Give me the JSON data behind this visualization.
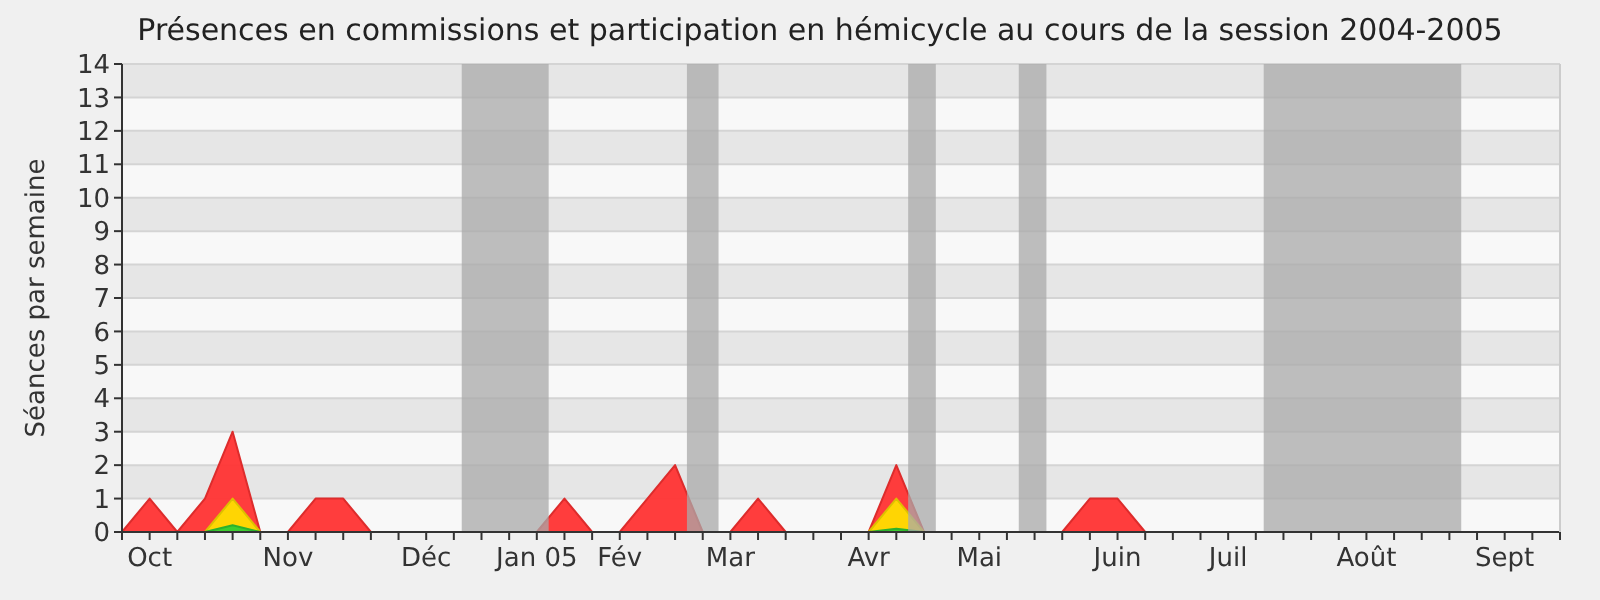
{
  "chart_data": {
    "type": "area",
    "title": "Présences en commissions et participation en hémicycle au cours de la session 2004-2005",
    "ylabel": "Séances par semaine",
    "x": [
      "2004-09-28",
      "2004-10-05",
      "2004-10-12",
      "2004-10-19",
      "2004-10-26",
      "2004-11-02",
      "2004-11-09",
      "2004-11-16",
      "2004-11-23",
      "2004-11-30",
      "2004-12-07",
      "2004-12-14",
      "2004-12-21",
      "2004-12-28",
      "2005-01-04",
      "2005-01-11",
      "2005-01-18",
      "2005-01-25",
      "2005-02-01",
      "2005-02-08",
      "2005-02-15",
      "2005-02-22",
      "2005-03-01",
      "2005-03-08",
      "2005-03-15",
      "2005-03-22",
      "2005-03-29",
      "2005-04-05",
      "2005-04-12",
      "2005-04-19",
      "2005-04-26",
      "2005-05-03",
      "2005-05-10",
      "2005-05-17",
      "2005-05-24",
      "2005-05-31",
      "2005-06-07",
      "2005-06-14",
      "2005-06-21",
      "2005-06-28",
      "2005-07-05",
      "2005-07-12",
      "2005-07-19",
      "2005-07-26",
      "2005-08-02",
      "2005-08-09",
      "2005-08-16",
      "2005-08-23",
      "2005-08-30",
      "2005-09-06",
      "2005-09-13",
      "2005-09-20",
      "2005-09-27"
    ],
    "series": [
      {
        "color": "#ff3333",
        "values": [
          0,
          1,
          0,
          1,
          3,
          0,
          0,
          1,
          1,
          0,
          0,
          0,
          0,
          0,
          0,
          0,
          1,
          0,
          0,
          1,
          2,
          0,
          0,
          1,
          0,
          0,
          0,
          0,
          2,
          0,
          0,
          0,
          0,
          0,
          0,
          1,
          1,
          0,
          0,
          0,
          0,
          0,
          0,
          0,
          0,
          0,
          0,
          0,
          0,
          0,
          0,
          0,
          0
        ]
      },
      {
        "color": "#ffdd00",
        "values": [
          0,
          0,
          0,
          0,
          1,
          0,
          0,
          0,
          0,
          0,
          0,
          0,
          0,
          0,
          0,
          0,
          0,
          0,
          0,
          0,
          0,
          0,
          0,
          0,
          0,
          0,
          0,
          0,
          1,
          0,
          0,
          0,
          0,
          0,
          0,
          0,
          0,
          0,
          0,
          0,
          0,
          0,
          0,
          0,
          0,
          0,
          0,
          0,
          0,
          0,
          0,
          0,
          0
        ]
      },
      {
        "color": "#33cc33",
        "values": [
          0,
          0,
          0,
          0,
          0.2,
          0,
          0,
          0,
          0,
          0,
          0,
          0,
          0,
          0,
          0,
          0,
          0,
          0,
          0,
          0,
          0,
          0,
          0,
          0,
          0,
          0,
          0,
          0,
          0.1,
          0,
          0,
          0,
          0,
          0,
          0,
          0,
          0,
          0,
          0,
          0,
          0,
          0,
          0,
          0,
          0,
          0,
          0,
          0,
          0,
          0,
          0,
          0,
          0
        ]
      }
    ],
    "xlim": [
      "2004-09-28",
      "2005-09-27"
    ],
    "xticks": [
      {
        "value": "2004-09-28",
        "label": null
      },
      {
        "value": "2004-10-05",
        "label": "Oct"
      },
      {
        "value": "2004-10-12",
        "label": null
      },
      {
        "value": "2004-10-19",
        "label": null
      },
      {
        "value": "2004-10-26",
        "label": null
      },
      {
        "value": "2004-11-02",
        "label": null
      },
      {
        "value": "2004-11-09",
        "label": "Nov"
      },
      {
        "value": "2004-11-16",
        "label": null
      },
      {
        "value": "2004-11-23",
        "label": null
      },
      {
        "value": "2004-11-30",
        "label": null
      },
      {
        "value": "2004-12-07",
        "label": null
      },
      {
        "value": "2004-12-14",
        "label": "Déc"
      },
      {
        "value": "2004-12-21",
        "label": null
      },
      {
        "value": "2004-12-28",
        "label": null
      },
      {
        "value": "2005-01-04",
        "label": null
      },
      {
        "value": "2005-01-11",
        "label": "Jan 05"
      },
      {
        "value": "2005-01-18",
        "label": null
      },
      {
        "value": "2005-01-25",
        "label": null
      },
      {
        "value": "2005-02-01",
        "label": "Fév"
      },
      {
        "value": "2005-02-08",
        "label": null
      },
      {
        "value": "2005-02-15",
        "label": null
      },
      {
        "value": "2005-02-22",
        "label": null
      },
      {
        "value": "2005-03-01",
        "label": "Mar"
      },
      {
        "value": "2005-03-08",
        "label": null
      },
      {
        "value": "2005-03-15",
        "label": null
      },
      {
        "value": "2005-03-22",
        "label": null
      },
      {
        "value": "2005-03-29",
        "label": null
      },
      {
        "value": "2005-04-05",
        "label": "Avr"
      },
      {
        "value": "2005-04-12",
        "label": null
      },
      {
        "value": "2005-04-19",
        "label": null
      },
      {
        "value": "2005-04-26",
        "label": null
      },
      {
        "value": "2005-05-03",
        "label": "Mai"
      },
      {
        "value": "2005-05-10",
        "label": null
      },
      {
        "value": "2005-05-17",
        "label": null
      },
      {
        "value": "2005-05-24",
        "label": null
      },
      {
        "value": "2005-05-31",
        "label": null
      },
      {
        "value": "2005-06-07",
        "label": "Juin"
      },
      {
        "value": "2005-06-14",
        "label": null
      },
      {
        "value": "2005-06-21",
        "label": null
      },
      {
        "value": "2005-06-28",
        "label": null
      },
      {
        "value": "2005-07-05",
        "label": "Juil"
      },
      {
        "value": "2005-07-12",
        "label": null
      },
      {
        "value": "2005-07-19",
        "label": null
      },
      {
        "value": "2005-07-26",
        "label": null
      },
      {
        "value": "2005-08-02",
        "label": null
      },
      {
        "value": "2005-08-09",
        "label": "Août"
      },
      {
        "value": "2005-08-16",
        "label": null
      },
      {
        "value": "2005-08-23",
        "label": null
      },
      {
        "value": "2005-08-30",
        "label": null
      },
      {
        "value": "2005-09-06",
        "label": null
      },
      {
        "value": "2005-09-13",
        "label": "Sept"
      },
      {
        "value": "2005-09-20",
        "label": null
      },
      {
        "value": "2005-09-27",
        "label": null
      }
    ],
    "ylim": [
      0,
      14
    ],
    "yticks": [
      0,
      1,
      2,
      3,
      4,
      5,
      6,
      7,
      8,
      9,
      10,
      11,
      12,
      13,
      14
    ],
    "grid": "y",
    "bands": [
      {
        "axis": "x",
        "from": "2004-12-23",
        "to": "2005-01-14",
        "color": "#aaaaaa"
      },
      {
        "axis": "x",
        "from": "2005-02-18",
        "to": "2005-02-26",
        "color": "#aaaaaa"
      },
      {
        "axis": "x",
        "from": "2005-04-15",
        "to": "2005-04-22",
        "color": "#aaaaaa"
      },
      {
        "axis": "x",
        "from": "2005-05-13",
        "to": "2005-05-20",
        "color": "#aaaaaa"
      },
      {
        "axis": "x",
        "from": "2005-07-14",
        "to": "2005-09-02",
        "color": "#aaaaaa"
      }
    ]
  }
}
